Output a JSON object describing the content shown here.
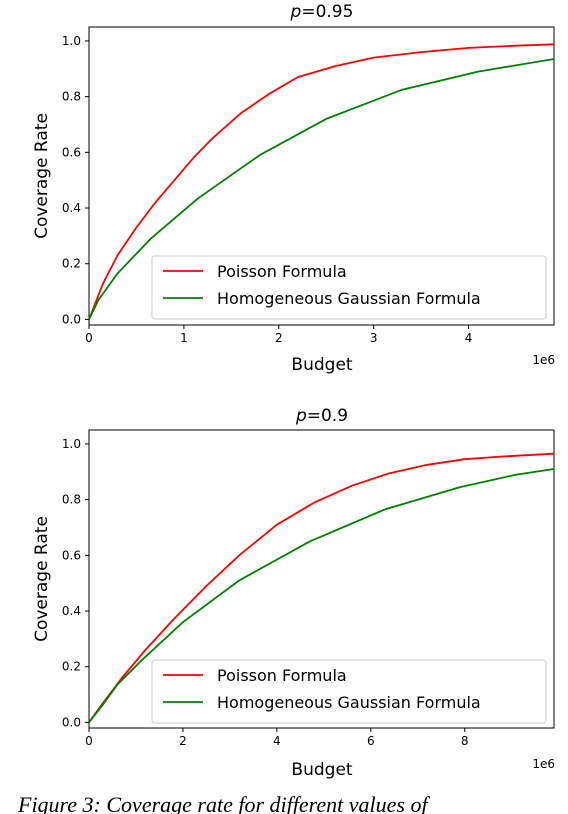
{
  "chart_data": [
    {
      "type": "line",
      "title": "p=0.95",
      "title_italic": "p",
      "title_rest": "=0.95",
      "xlabel": "Budget",
      "ylabel": "Coverage Rate",
      "x_offset": "1e6",
      "xlim": [
        0,
        4.9
      ],
      "ylim": [
        -0.02,
        1.05
      ],
      "xticks": [
        0,
        1,
        2,
        3,
        4
      ],
      "xtick_labels": [
        "0",
        "1",
        "2",
        "3",
        "4"
      ],
      "yticks": [
        0.0,
        0.2,
        0.4,
        0.6,
        0.8,
        1.0
      ],
      "ytick_labels": [
        "0.0",
        "0.2",
        "0.4",
        "0.6",
        "0.8",
        "1.0"
      ],
      "grid": false,
      "legend_placement": "lower-right",
      "series": [
        {
          "name": "Poisson Formula",
          "color": "#ff0000",
          "x": [
            0,
            0.15,
            0.3,
            0.5,
            0.7,
            0.9,
            1.1,
            1.3,
            1.6,
            1.9,
            2.2,
            2.6,
            3.0,
            3.5,
            4.0,
            4.5,
            4.9
          ],
          "y": [
            0.0,
            0.13,
            0.23,
            0.33,
            0.42,
            0.5,
            0.58,
            0.65,
            0.74,
            0.81,
            0.87,
            0.91,
            0.94,
            0.96,
            0.975,
            0.983,
            0.988
          ]
        },
        {
          "name": "Homogeneous Gaussian Formula",
          "color": "#008000",
          "x": [
            0,
            0.1,
            0.3,
            0.65,
            1.15,
            1.8,
            2.5,
            3.3,
            4.1,
            4.9
          ],
          "y": [
            0.0,
            0.07,
            0.165,
            0.29,
            0.435,
            0.59,
            0.72,
            0.825,
            0.89,
            0.935
          ]
        }
      ]
    },
    {
      "type": "line",
      "title": "p=0.9",
      "title_italic": "p",
      "title_rest": "=0.9",
      "xlabel": "Budget",
      "ylabel": "Coverage Rate",
      "x_offset": "1e6",
      "xlim": [
        0,
        9.9
      ],
      "ylim": [
        -0.02,
        1.05
      ],
      "xticks": [
        0,
        2,
        4,
        6,
        8
      ],
      "xtick_labels": [
        "0",
        "2",
        "4",
        "6",
        "8"
      ],
      "yticks": [
        0.0,
        0.2,
        0.4,
        0.6,
        0.8,
        1.0
      ],
      "ytick_labels": [
        "0.0",
        "0.2",
        "0.4",
        "0.6",
        "0.8",
        "1.0"
      ],
      "grid": false,
      "legend_placement": "lower-right",
      "series": [
        {
          "name": "Poisson Formula",
          "color": "#ff0000",
          "x": [
            0,
            0.3,
            0.7,
            1.2,
            1.8,
            2.5,
            3.2,
            4.0,
            4.8,
            5.6,
            6.4,
            7.2,
            8.0,
            8.8,
            9.9
          ],
          "y": [
            0.0,
            0.07,
            0.16,
            0.26,
            0.37,
            0.49,
            0.6,
            0.71,
            0.79,
            0.85,
            0.895,
            0.925,
            0.945,
            0.955,
            0.965
          ]
        },
        {
          "name": "Homogeneous Gaussian Formula",
          "color": "#008000",
          "x": [
            0,
            0.3,
            0.6,
            1.1,
            2.0,
            3.2,
            4.7,
            6.3,
            7.9,
            9.1,
            9.9
          ],
          "y": [
            0.0,
            0.065,
            0.135,
            0.22,
            0.36,
            0.51,
            0.65,
            0.765,
            0.845,
            0.89,
            0.91
          ]
        }
      ]
    }
  ],
  "caption": "Figure 3: Coverage rate for different values of"
}
